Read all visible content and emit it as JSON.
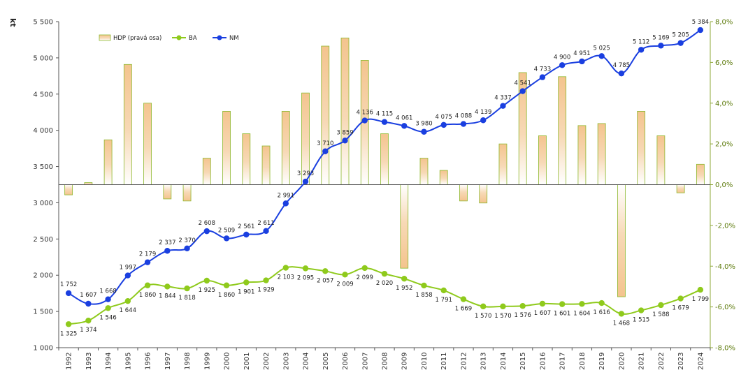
{
  "chart_data": {
    "type": "bar+line",
    "title": "",
    "unit_label": "kt",
    "categories": [
      "1992",
      "1993",
      "1994",
      "1995",
      "1996",
      "1997",
      "1998",
      "1999",
      "2000",
      "2001",
      "2002",
      "2003",
      "2004",
      "2005",
      "2006",
      "2007",
      "2008",
      "2009",
      "2010",
      "2011",
      "2012",
      "2013",
      "2014",
      "2015",
      "2016",
      "2017",
      "2018",
      "2019",
      "2020",
      "2021",
      "2022",
      "2023",
      "2024"
    ],
    "left_axis": {
      "ylim": [
        1000,
        5500
      ],
      "ticks": [
        1000,
        1500,
        2000,
        2500,
        3000,
        3500,
        4000,
        4500,
        5000,
        5500
      ],
      "tick_labels": [
        "1 000",
        "1 500",
        "2 000",
        "2 500",
        "3 000",
        "3 500",
        "4 000",
        "4 500",
        "5 000",
        "5 500"
      ]
    },
    "right_axis": {
      "ylim": [
        -8,
        8
      ],
      "ticks": [
        -8,
        -6,
        -4,
        -2,
        0,
        2,
        4,
        6,
        8
      ],
      "tick_labels": [
        "-8,0%",
        "-6,0%",
        "-4,0%",
        "-2,0%",
        "0,0%",
        "2,0%",
        "4,0%",
        "6,0%",
        "8,0%"
      ]
    },
    "series": [
      {
        "name": "HDP (pravá osa)",
        "type": "bar",
        "axis": "right",
        "color": "#f4c896",
        "border": "#8db92e",
        "values": [
          -0.5,
          0.1,
          2.2,
          5.9,
          4.0,
          -0.7,
          -0.8,
          1.3,
          3.6,
          2.5,
          1.9,
          3.6,
          4.5,
          6.8,
          7.2,
          6.1,
          2.5,
          -4.1,
          1.3,
          0.7,
          -0.8,
          -0.9,
          2.0,
          5.5,
          2.4,
          5.3,
          2.9,
          3.0,
          -5.5,
          3.6,
          2.4,
          -0.4,
          1.0
        ]
      },
      {
        "name": "BA",
        "type": "line",
        "axis": "left",
        "color": "#8fca1c",
        "values": [
          1325,
          1374,
          1546,
          1644,
          1860,
          1844,
          1818,
          1925,
          1860,
          1901,
          1929,
          2103,
          2095,
          2057,
          2009,
          2099,
          2020,
          1952,
          1858,
          1791,
          1669,
          1570,
          1570,
          1576,
          1607,
          1601,
          1604,
          1616,
          1468,
          1515,
          1588,
          1679,
          1799
        ],
        "labels": [
          "1 325",
          "1 374",
          "1 546",
          "1 644",
          "1 860",
          "1 844",
          "1 818",
          "1 925",
          "1 860",
          "1 901",
          "1 929",
          "2 103",
          "2 095",
          "2 057",
          "2 009",
          "2 099",
          "2 020",
          "1 952",
          "1 858",
          "1 791",
          "1 669",
          "1 570",
          "1 570",
          "1 576",
          "1 607",
          "1 601",
          "1 604",
          "1 616",
          "1 468",
          "1 515",
          "1 588",
          "1 679",
          "1 799"
        ]
      },
      {
        "name": "NM",
        "type": "line",
        "axis": "left",
        "color": "#1a3fe0",
        "values": [
          1752,
          1607,
          1668,
          1997,
          2179,
          2337,
          2370,
          2608,
          2509,
          2561,
          2611,
          2991,
          3293,
          3710,
          3859,
          4136,
          4115,
          4061,
          3980,
          4075,
          4088,
          4139,
          4337,
          4541,
          4733,
          4900,
          4951,
          5025,
          4785,
          5112,
          5169,
          5205,
          5384
        ],
        "labels": [
          "1 752",
          "1 607",
          "1 668",
          "1 997",
          "2 179",
          "2 337",
          "2 370",
          "2 608",
          "2 509",
          "2 561",
          "2 611",
          "2 991",
          "3 293",
          "3 710",
          "3 859",
          "4 136",
          "4 115",
          "4 061",
          "3 980",
          "4 075",
          "4 088",
          "4 139",
          "4 337",
          "4 541",
          "4 733",
          "4 900",
          "4 951",
          "5 025",
          "4 785",
          "5 112",
          "5 169",
          "5 205",
          "5 384"
        ]
      }
    ],
    "legend": {
      "placement": "top-left",
      "entries": [
        "HDP (pravá osa)",
        "BA",
        "NM"
      ]
    },
    "grid": false,
    "colors": {
      "axis_left": "#333333",
      "axis_right": "#5c7a0a",
      "zero_line": "#555555"
    }
  }
}
